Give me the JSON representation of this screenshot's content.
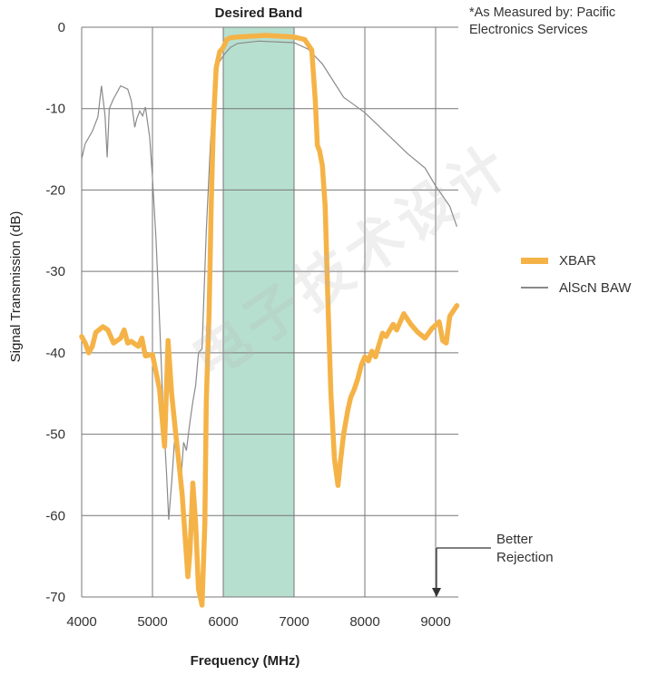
{
  "note_text": "*As Measured by: Pacific Electronics Services",
  "band_label": "Desired Band",
  "annotation_text": [
    "Better",
    "Rejection"
  ],
  "watermark_text": "电子技术设计",
  "colors": {
    "xbar": "#f5b347",
    "baw": "#8a8a8a",
    "band_fill": "#b7dfcf",
    "grid": "#777777"
  },
  "chart_data": {
    "type": "line",
    "xlabel": "Frequency (MHz)",
    "ylabel": "Signal Transmission (dB)",
    "xlim": [
      4000,
      9300
    ],
    "ylim": [
      -70,
      0
    ],
    "xticks": [
      4000,
      5000,
      6000,
      7000,
      8000,
      9000
    ],
    "yticks": [
      0,
      -10,
      -20,
      -30,
      -40,
      -50,
      -60,
      -70
    ],
    "grid": true,
    "legend_position": "right",
    "band": {
      "x": [
        6000,
        7000
      ],
      "label": "Desired Band"
    },
    "series": [
      {
        "name": "XBAR",
        "color": "#f5b347",
        "points": [
          [
            4000,
            -38
          ],
          [
            4050,
            -38.8
          ],
          [
            4100,
            -40
          ],
          [
            4150,
            -39.2
          ],
          [
            4200,
            -37.5
          ],
          [
            4300,
            -36.8
          ],
          [
            4370,
            -37.2
          ],
          [
            4450,
            -38.8
          ],
          [
            4550,
            -38.2
          ],
          [
            4600,
            -37.2
          ],
          [
            4650,
            -38.8
          ],
          [
            4700,
            -38.6
          ],
          [
            4800,
            -39.2
          ],
          [
            4850,
            -38.2
          ],
          [
            4900,
            -40.4
          ],
          [
            5000,
            -40.2
          ],
          [
            5100,
            -44.5
          ],
          [
            5170,
            -51.5
          ],
          [
            5220,
            -38.5
          ],
          [
            5270,
            -45
          ],
          [
            5330,
            -50
          ],
          [
            5380,
            -54
          ],
          [
            5420,
            -57.5
          ],
          [
            5460,
            -62.5
          ],
          [
            5500,
            -67.5
          ],
          [
            5530,
            -64.5
          ],
          [
            5570,
            -56
          ],
          [
            5610,
            -61
          ],
          [
            5650,
            -69
          ],
          [
            5700,
            -71
          ],
          [
            5740,
            -61
          ],
          [
            5760,
            -46
          ],
          [
            5800,
            -35
          ],
          [
            5830,
            -22
          ],
          [
            5860,
            -12
          ],
          [
            5900,
            -5
          ],
          [
            5950,
            -3
          ],
          [
            6000,
            -2.5
          ],
          [
            6050,
            -1.5
          ],
          [
            6100,
            -1.3
          ],
          [
            6200,
            -1.2
          ],
          [
            6400,
            -1.1
          ],
          [
            6600,
            -1
          ],
          [
            6800,
            -1.1
          ],
          [
            7000,
            -1.2
          ],
          [
            7150,
            -1.5
          ],
          [
            7250,
            -2.8
          ],
          [
            7300,
            -9
          ],
          [
            7330,
            -14.5
          ],
          [
            7360,
            -15.2
          ],
          [
            7400,
            -17
          ],
          [
            7440,
            -22
          ],
          [
            7480,
            -34
          ],
          [
            7520,
            -45
          ],
          [
            7570,
            -53
          ],
          [
            7620,
            -56.3
          ],
          [
            7660,
            -53
          ],
          [
            7700,
            -50
          ],
          [
            7760,
            -47
          ],
          [
            7800,
            -45.5
          ],
          [
            7850,
            -44.5
          ],
          [
            7900,
            -43.2
          ],
          [
            7950,
            -41.5
          ],
          [
            8000,
            -40.5
          ],
          [
            8050,
            -41
          ],
          [
            8100,
            -39.8
          ],
          [
            8150,
            -40.5
          ],
          [
            8200,
            -39
          ],
          [
            8250,
            -37.6
          ],
          [
            8300,
            -38
          ],
          [
            8400,
            -36.5
          ],
          [
            8450,
            -37.2
          ],
          [
            8550,
            -35.2
          ],
          [
            8650,
            -36.5
          ],
          [
            8750,
            -37.5
          ],
          [
            8850,
            -38.2
          ],
          [
            8950,
            -37
          ],
          [
            9050,
            -36.2
          ],
          [
            9100,
            -38.5
          ],
          [
            9150,
            -38.8
          ],
          [
            9200,
            -35.5
          ],
          [
            9300,
            -34.2
          ]
        ]
      },
      {
        "name": "AlScN BAW",
        "color": "#8a8a8a",
        "points": [
          [
            4000,
            -16.2
          ],
          [
            4050,
            -14.3
          ],
          [
            4150,
            -12.8
          ],
          [
            4230,
            -11
          ],
          [
            4280,
            -7.2
          ],
          [
            4330,
            -10.8
          ],
          [
            4360,
            -16
          ],
          [
            4390,
            -10
          ],
          [
            4450,
            -8.8
          ],
          [
            4550,
            -7.2
          ],
          [
            4650,
            -7.6
          ],
          [
            4700,
            -9
          ],
          [
            4750,
            -12.3
          ],
          [
            4780,
            -11.2
          ],
          [
            4820,
            -10.3
          ],
          [
            4860,
            -10.9
          ],
          [
            4900,
            -9.8
          ],
          [
            4960,
            -13.5
          ],
          [
            5000,
            -18.5
          ],
          [
            5050,
            -26
          ],
          [
            5100,
            -36
          ],
          [
            5150,
            -47
          ],
          [
            5200,
            -55
          ],
          [
            5230,
            -60.5
          ],
          [
            5270,
            -56
          ],
          [
            5310,
            -51
          ],
          [
            5350,
            -50.5
          ],
          [
            5400,
            -56
          ],
          [
            5440,
            -51
          ],
          [
            5480,
            -52
          ],
          [
            5530,
            -48.5
          ],
          [
            5570,
            -46
          ],
          [
            5610,
            -44
          ],
          [
            5650,
            -40
          ],
          [
            5700,
            -39.5
          ],
          [
            5760,
            -25
          ],
          [
            5820,
            -14
          ],
          [
            5870,
            -8
          ],
          [
            5930,
            -4.5
          ],
          [
            6000,
            -3.5
          ],
          [
            6100,
            -2.5
          ],
          [
            6200,
            -2
          ],
          [
            6500,
            -1.7
          ],
          [
            7000,
            -1.9
          ],
          [
            7200,
            -2.7
          ],
          [
            7400,
            -4.5
          ],
          [
            7700,
            -8.6
          ],
          [
            8000,
            -10.5
          ],
          [
            8300,
            -13
          ],
          [
            8600,
            -15.5
          ],
          [
            8850,
            -17.3
          ],
          [
            9000,
            -19.5
          ],
          [
            9200,
            -22
          ],
          [
            9300,
            -24.5
          ]
        ]
      }
    ]
  }
}
